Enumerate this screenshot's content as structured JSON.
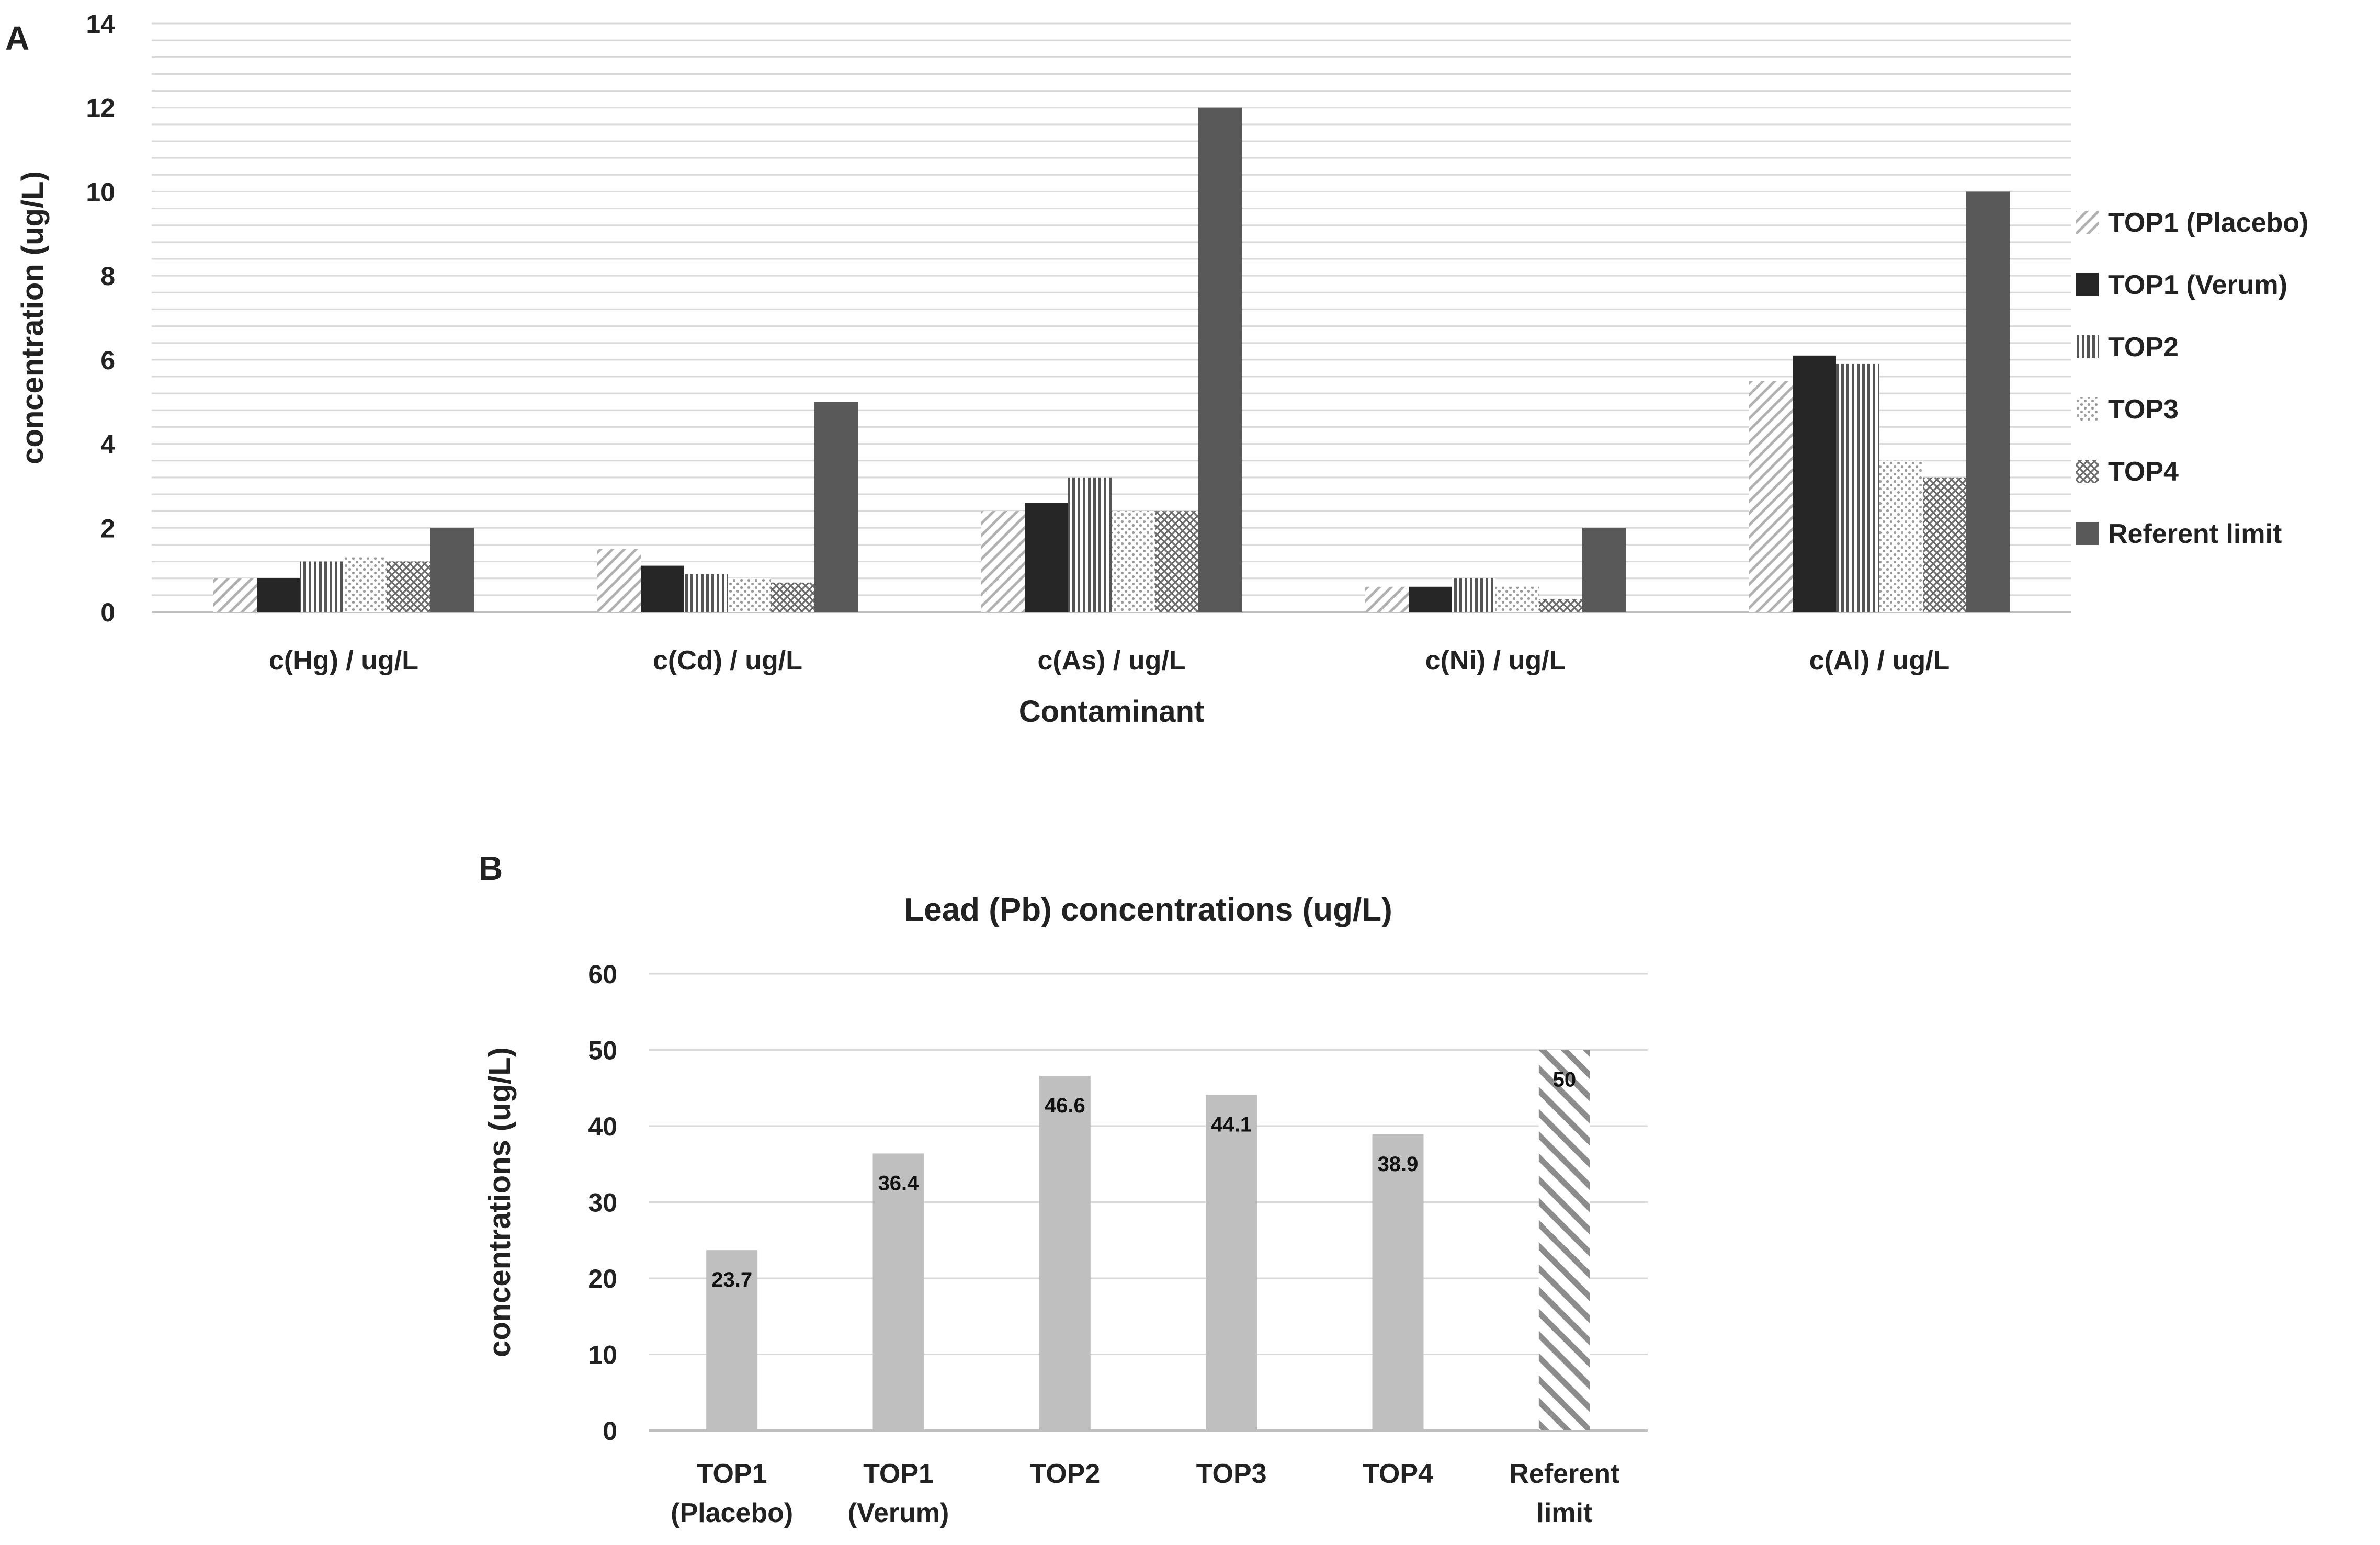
{
  "panel_labels": {
    "a": "A",
    "b": "B"
  },
  "chart_data": [
    {
      "type": "bar",
      "panel": "A",
      "title": "",
      "xlabel": "Contaminant",
      "ylabel": "concentration (ug/L)",
      "ylim": [
        0,
        14
      ],
      "yticks": [
        0,
        2,
        4,
        6,
        8,
        10,
        12,
        14
      ],
      "categories": [
        "c(Hg) / ug/L",
        "c(Cd) / ug/L",
        "c(As) / ug/L",
        "c(Ni) / ug/L",
        "c(Al) / ug/L"
      ],
      "series": [
        {
          "name": "TOP1 (Placebo)",
          "pattern": "diag-light",
          "values": [
            0.8,
            1.5,
            2.4,
            0.6,
            5.5
          ]
        },
        {
          "name": "TOP1 (Verum)",
          "pattern": "solid-dark",
          "values": [
            0.8,
            1.1,
            2.6,
            0.6,
            6.1
          ]
        },
        {
          "name": "TOP2",
          "pattern": "vertical",
          "values": [
            1.2,
            0.9,
            3.2,
            0.8,
            5.9
          ]
        },
        {
          "name": "TOP3",
          "pattern": "dots",
          "values": [
            1.3,
            0.8,
            2.4,
            0.6,
            3.6
          ]
        },
        {
          "name": "TOP4",
          "pattern": "cross",
          "values": [
            1.2,
            0.7,
            2.4,
            0.3,
            3.2
          ]
        },
        {
          "name": "Referent limit",
          "pattern": "solid-gray",
          "values": [
            2,
            5,
            12,
            2,
            10
          ]
        }
      ],
      "legend_position": "right",
      "grid": true
    },
    {
      "type": "bar",
      "panel": "B",
      "title": "Lead (Pb) concentrations (ug/L)",
      "xlabel": "",
      "ylabel": "concentrations (ug/L)",
      "ylim": [
        0,
        60
      ],
      "yticks": [
        0,
        10,
        20,
        30,
        40,
        50,
        60
      ],
      "categories": [
        [
          "TOP1",
          "(Placebo)"
        ],
        [
          "TOP1",
          "(Verum)"
        ],
        [
          "TOP2"
        ],
        [
          "TOP3"
        ],
        [
          "TOP4"
        ],
        [
          "Referent",
          "limit"
        ]
      ],
      "values": [
        23.7,
        36.4,
        46.6,
        44.1,
        38.9,
        50
      ],
      "data_labels": [
        "23.7",
        "36.4",
        "46.6",
        "44.1",
        "38.9",
        "50"
      ],
      "bar_styles": [
        "solid-light",
        "solid-light",
        "solid-light",
        "solid-light",
        "solid-light",
        "hatched"
      ],
      "grid": true
    }
  ],
  "colors": {
    "grid": "#d9d9d9",
    "axis": "#bfbfbf",
    "dark": "#262626",
    "gray": "#595959",
    "light_bar": "#bfbfbf",
    "hatch": "#8c8c8c",
    "text": "#222222"
  }
}
